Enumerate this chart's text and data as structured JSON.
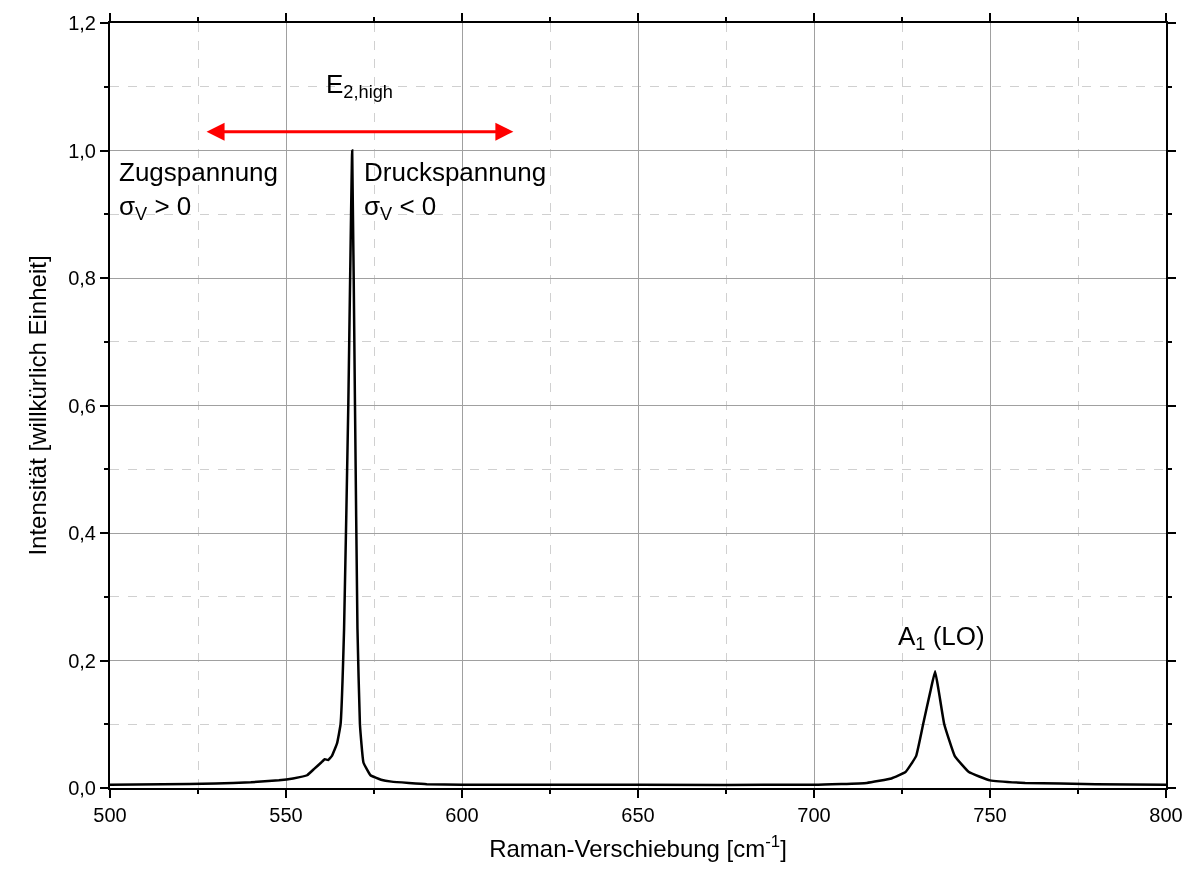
{
  "chart_data": {
    "type": "line",
    "xlabel": "Raman-Verschiebung [cm$^{-1}$]",
    "ylabel": "Intensität [willkürlich Einheit]",
    "x": [
      500,
      515,
      530,
      540,
      548,
      552,
      556,
      558,
      560,
      561,
      562,
      563,
      564.5,
      565.5,
      566.5,
      567.7,
      568.8,
      569.6,
      570.3,
      571,
      572,
      574,
      577,
      580,
      590,
      600,
      650,
      700,
      715,
      722,
      726,
      729,
      731,
      733,
      734.4,
      735.5,
      737,
      740,
      744,
      750,
      760,
      780,
      800
    ],
    "series": [
      {
        "color": "#000000",
        "values": [
          0.005,
          0.006,
          0.007,
          0.009,
          0.012,
          0.015,
          0.02,
          0.03,
          0.04,
          0.045,
          0.044,
          0.05,
          0.07,
          0.1,
          0.25,
          0.6,
          1.0,
          0.6,
          0.25,
          0.1,
          0.04,
          0.02,
          0.013,
          0.01,
          0.006,
          0.005,
          0.005,
          0.005,
          0.008,
          0.015,
          0.025,
          0.05,
          0.1,
          0.15,
          0.183,
          0.15,
          0.1,
          0.05,
          0.025,
          0.012,
          0.008,
          0.006,
          0.005
        ]
      }
    ],
    "xlim": [
      500,
      800
    ],
    "xticks": [
      500,
      550,
      600,
      650,
      700,
      750,
      800
    ],
    "ylim": [
      0,
      1.2
    ],
    "yticks": [
      {
        "value": 0,
        "label": "0,0"
      },
      {
        "value": 0.2,
        "label": "0,2"
      },
      {
        "value": 0.4,
        "label": "0,4"
      },
      {
        "value": 0.6,
        "label": "0,6"
      },
      {
        "value": 0.8,
        "label": "0,8"
      },
      {
        "value": 1.0,
        "label": "1,0"
      },
      {
        "value": 1.2,
        "label": "1,2"
      }
    ],
    "grid": true,
    "marker": "none",
    "line_style": "solid",
    "annotations": [
      "E$_{2,high}$",
      "Zugspannung\nσ$_{V}$ > 0",
      "Druckspannung\nσ$_{V}$ < 0",
      "A$_{1}$ (LO)"
    ]
  }
}
